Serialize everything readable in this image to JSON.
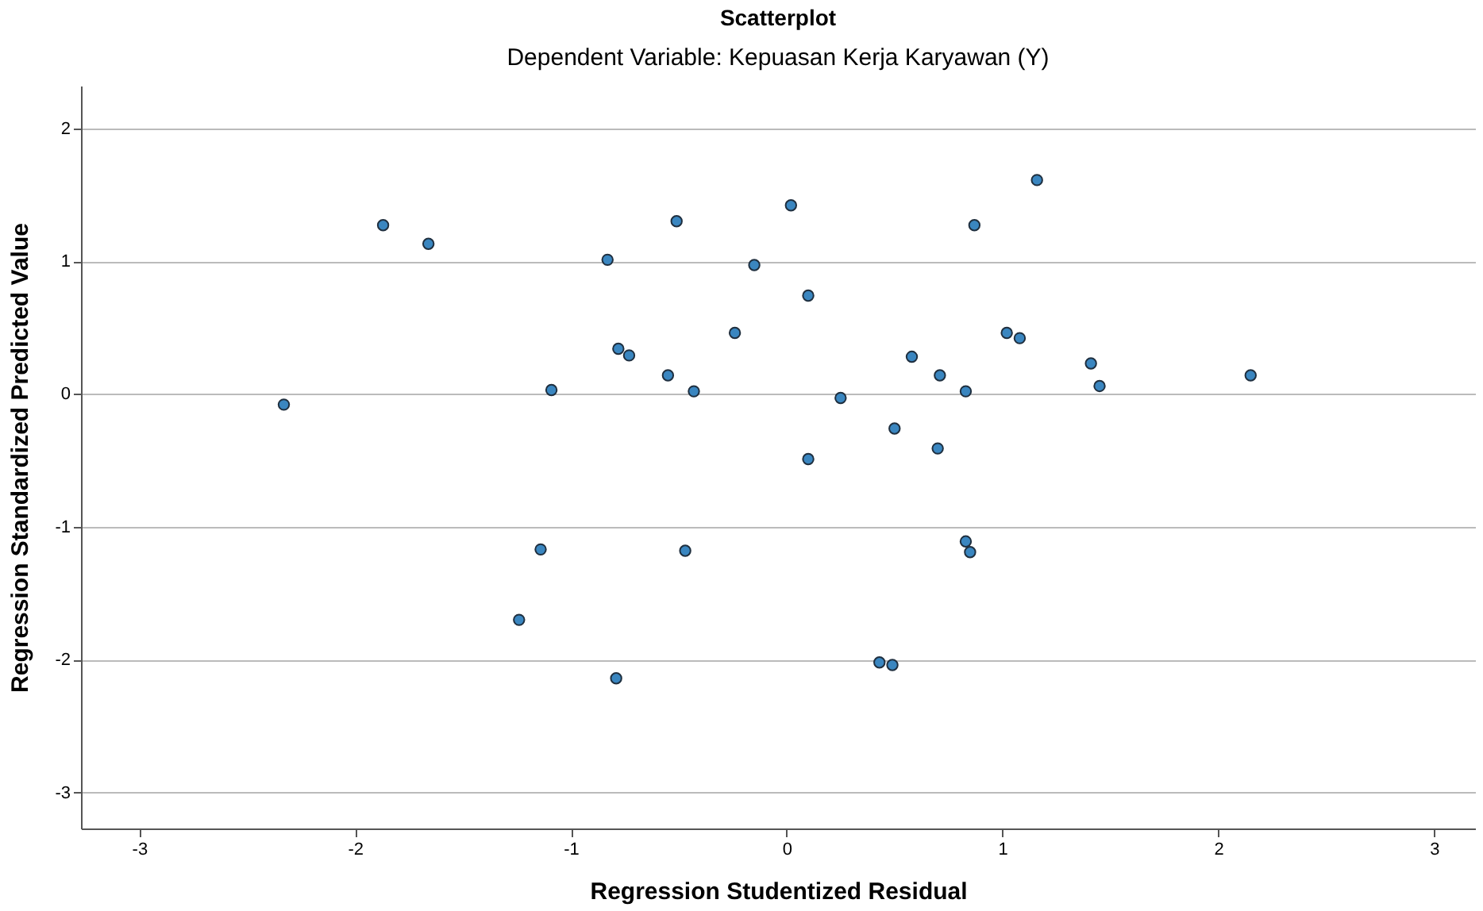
{
  "chart_data": {
    "type": "scatter",
    "title": "Scatterplot",
    "subtitle": "Dependent Variable: Kepuasan Kerja Karyawan (Y)",
    "xlabel": "Regression Studentized Residual",
    "ylabel": "Regression Standardized Predicted Value",
    "x": [
      -1.87,
      -1.66,
      -2.33,
      -1.09,
      -1.14,
      -1.24,
      -0.51,
      -0.83,
      0.02,
      -0.15,
      0.1,
      0.87,
      -0.24,
      -0.78,
      -0.73,
      -0.55,
      -0.43,
      0.25,
      0.5,
      0.7,
      0.1,
      0.58,
      0.71,
      0.83,
      1.02,
      1.08,
      -0.47,
      0.83,
      0.85,
      -0.79,
      0.43,
      0.49,
      1.16,
      1.41,
      1.45,
      2.15
    ],
    "values": [
      1.27,
      1.13,
      -0.08,
      0.03,
      -1.17,
      -1.7,
      1.3,
      1.01,
      1.42,
      0.97,
      0.74,
      1.27,
      0.46,
      0.34,
      0.29,
      0.14,
      0.02,
      -0.03,
      -0.26,
      -0.41,
      -0.49,
      0.28,
      0.14,
      0.02,
      0.46,
      0.42,
      -1.18,
      -1.11,
      -1.19,
      -2.14,
      -2.02,
      -2.04,
      1.61,
      0.23,
      0.06,
      0.14
    ],
    "color": "#3a86c0",
    "marker": "circle",
    "grid": "y",
    "xlim": [
      -3.27,
      3.19
    ],
    "ylim": [
      -3.27,
      2.32
    ],
    "xticks": [
      -3,
      -2,
      -1,
      0,
      1,
      2,
      3
    ],
    "yticks": [
      -3,
      -2,
      -1,
      0,
      1,
      2
    ]
  }
}
